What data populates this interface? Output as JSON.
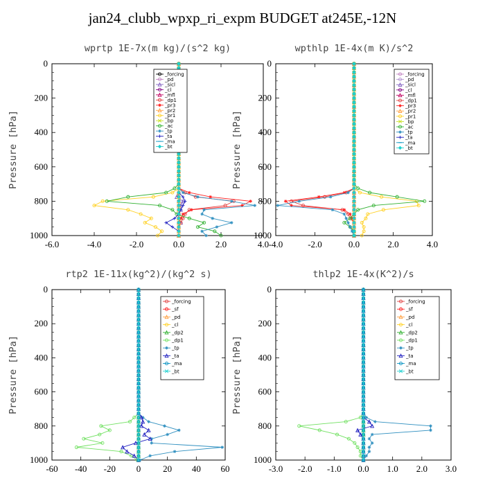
{
  "title": "jan24_clubb_wpxp_ri_expm  BUDGET at245E,-12N",
  "chart_data": [
    {
      "type": "line",
      "title": "wprtp  1E-7x(m kg)/(s^2 kg)",
      "ylabel": "Pressure [hPa]",
      "xlim": [
        -6,
        4
      ],
      "ylim": [
        1000,
        0
      ],
      "xticks": [
        "-6.0",
        "-4.0",
        "-2.0",
        "0.0",
        "2.0",
        "4.0"
      ],
      "yticks": [
        "0",
        "200",
        "400",
        "600",
        "800",
        "1000"
      ],
      "legend_position": "top-right",
      "y": [
        725,
        750,
        775,
        800,
        825,
        850,
        875,
        900,
        925,
        950,
        975,
        1000
      ],
      "series": [
        {
          "name": "_forcing",
          "color": "#000000",
          "values": [
            0,
            0,
            0,
            0,
            0,
            0,
            0,
            0,
            0,
            0,
            0,
            0
          ]
        },
        {
          "name": "_pd",
          "color": "#c080c0",
          "values": [
            0,
            0,
            0,
            0,
            0,
            0,
            0,
            0,
            0,
            0,
            0,
            0
          ]
        },
        {
          "name": "_sicl",
          "color": "#8060c0",
          "values": [
            0,
            0,
            -0.1,
            0.2,
            0.1,
            0.1,
            0,
            0,
            0.1,
            0,
            0,
            0
          ]
        },
        {
          "name": "_cl",
          "color": "#800080",
          "values": [
            0,
            0,
            0,
            0,
            0,
            0,
            0,
            0,
            0,
            0,
            0,
            0
          ]
        },
        {
          "name": "_mfl",
          "color": "#c00060",
          "values": [
            0,
            0,
            0,
            0,
            0,
            0,
            0,
            0,
            0,
            0,
            0,
            0
          ]
        },
        {
          "name": "_dp1",
          "color": "#e04040",
          "values": [
            0,
            0.3,
            0.8,
            2.6,
            2.2,
            0.5,
            0.3,
            0.2,
            0.1,
            0,
            0,
            0
          ]
        },
        {
          "name": "_pr3",
          "color": "#ff2020",
          "values": [
            0,
            0.5,
            1.5,
            3.4,
            3.0,
            0.6,
            0.2,
            0.1,
            0,
            0,
            0,
            0
          ]
        },
        {
          "name": "_pr2",
          "color": "#ffa040",
          "values": [
            0,
            0,
            0,
            0,
            0,
            0,
            0,
            0,
            0,
            0,
            0,
            0
          ]
        },
        {
          "name": "_pr1",
          "color": "#ffd020",
          "values": [
            0,
            -0.3,
            -1.2,
            -3.6,
            -4.0,
            -2.4,
            -1.8,
            -1.3,
            -1.6,
            -1.1,
            -0.8,
            -1.0
          ]
        },
        {
          "name": "_bp",
          "color": "#c8e020",
          "values": [
            0,
            0,
            0,
            0,
            0,
            0,
            0,
            0,
            0,
            0,
            0,
            0
          ]
        },
        {
          "name": "_ac",
          "color": "#30b030",
          "values": [
            -0.2,
            -0.6,
            -2.4,
            -3.4,
            -0.9,
            -0.3,
            -0.1,
            0.5,
            1.2,
            0.9,
            1.7,
            2.0
          ]
        },
        {
          "name": "_tp",
          "color": "#3090c0",
          "values": [
            0,
            0.2,
            0.9,
            2.5,
            3.6,
            1.2,
            1.1,
            1.6,
            2.5,
            1.8,
            1.1,
            1.3
          ]
        },
        {
          "name": "_ta",
          "color": "#2020c0",
          "values": [
            0,
            0,
            0.2,
            0.3,
            0.2,
            0.1,
            0,
            -0.2,
            -0.6,
            -0.3,
            0,
            0
          ]
        },
        {
          "name": "_ma",
          "color": "#0090c0",
          "values": [
            0,
            0,
            0,
            0,
            0,
            0,
            0,
            0,
            0,
            0,
            0,
            0
          ]
        },
        {
          "name": "_bt",
          "color": "#20d0d0",
          "values": [
            0,
            0,
            0,
            0,
            0,
            0,
            0,
            0,
            0,
            0,
            0,
            0
          ]
        }
      ]
    },
    {
      "type": "line",
      "title": "wpthlp  1E-4x(m K)/s^2",
      "ylabel": "Pressure [hPa]",
      "xlim": [
        -4,
        4
      ],
      "ylim": [
        1000,
        0
      ],
      "xticks": [
        "-4.0",
        "-2.0",
        "0.0",
        "2.0",
        "4.0"
      ],
      "yticks": [
        "0",
        "200",
        "400",
        "600",
        "800",
        "1000"
      ],
      "legend_position": "top-right",
      "y": [
        725,
        750,
        775,
        800,
        825,
        850,
        875,
        900,
        925,
        950,
        975,
        1000
      ],
      "series": [
        {
          "name": "_forcing",
          "color": "#c080c0",
          "values": [
            0,
            0,
            0,
            0,
            0,
            0,
            0,
            0,
            0,
            0,
            0,
            0
          ]
        },
        {
          "name": "_pd",
          "color": "#b090d0",
          "values": [
            0,
            0,
            0,
            0,
            0,
            0,
            0,
            0,
            0,
            0,
            0,
            0
          ]
        },
        {
          "name": "_sicl",
          "color": "#8060c0",
          "values": [
            0,
            0,
            0,
            0,
            0,
            0,
            0,
            0,
            0,
            0,
            0,
            0
          ]
        },
        {
          "name": "_cl",
          "color": "#800080",
          "values": [
            0,
            0,
            0,
            0,
            0,
            0,
            0,
            0,
            0,
            0,
            0,
            0
          ]
        },
        {
          "name": "_mfl",
          "color": "#c00060",
          "values": [
            0,
            0,
            0,
            0,
            0,
            0,
            0,
            0,
            0,
            0,
            0,
            0
          ]
        },
        {
          "name": "_dp1",
          "color": "#e04040",
          "values": [
            0,
            -0.4,
            -1.5,
            -3.2,
            -2.6,
            -0.6,
            -0.3,
            -0.2,
            0,
            0,
            0,
            0
          ]
        },
        {
          "name": "_pr3",
          "color": "#ff2020",
          "values": [
            0,
            -0.5,
            -1.8,
            -3.5,
            -3.2,
            -0.5,
            -0.2,
            -0.1,
            0,
            0,
            0,
            0
          ]
        },
        {
          "name": "_pr2",
          "color": "#ffa040",
          "values": [
            0,
            0,
            0,
            0,
            0,
            0,
            0,
            0,
            0,
            0,
            0,
            0
          ]
        },
        {
          "name": "_pr1",
          "color": "#ffd020",
          "values": [
            0,
            0.3,
            1.4,
            3.2,
            3.3,
            1.5,
            0.7,
            0.6,
            0.4,
            0.5,
            0.5,
            0.4
          ]
        },
        {
          "name": "_bp",
          "color": "#c8e020",
          "values": [
            0,
            0,
            0,
            0,
            0,
            0,
            0,
            0,
            0,
            0,
            0,
            0
          ]
        },
        {
          "name": "_ac",
          "color": "#30b030",
          "values": [
            0.2,
            0.8,
            2.2,
            3.6,
            1.0,
            0.2,
            0,
            -0.2,
            -0.5,
            -0.2,
            0,
            0
          ]
        },
        {
          "name": "_tp",
          "color": "#3090c0",
          "values": [
            0,
            -0.3,
            -1.2,
            -2.8,
            -3.9,
            -1.1,
            -0.5,
            -0.4,
            -0.3,
            -0.2,
            -0.1,
            0
          ]
        },
        {
          "name": "_ta",
          "color": "#2020c0",
          "values": [
            0,
            0,
            0,
            0,
            0,
            0,
            0,
            0,
            0,
            0,
            0,
            0
          ]
        },
        {
          "name": "_ma",
          "color": "#0090c0",
          "values": [
            0,
            0,
            0,
            0,
            0,
            0,
            0,
            0,
            0,
            0,
            0,
            0
          ]
        },
        {
          "name": "_bt",
          "color": "#20d0d0",
          "values": [
            0,
            0,
            0,
            0,
            0,
            0,
            0,
            0,
            0,
            0,
            0,
            0
          ]
        }
      ]
    },
    {
      "type": "line",
      "title": "rtp2  1E-11x(kg^2)/(kg^2 s)",
      "ylabel": "Pressure [hPa]",
      "xlim": [
        -60,
        60
      ],
      "ylim": [
        1000,
        0
      ],
      "xticks": [
        "-60",
        "-40",
        "-20",
        "0",
        "20",
        "40",
        "60"
      ],
      "yticks": [
        "0",
        "200",
        "400",
        "600",
        "800",
        "1000"
      ],
      "legend_position": "top-right",
      "y": [
        725,
        750,
        775,
        800,
        825,
        850,
        875,
        900,
        925,
        950,
        975,
        1000
      ],
      "series": [
        {
          "name": "_forcing",
          "color": "#e04040",
          "values": [
            0,
            0,
            0,
            0,
            0,
            0,
            0,
            0,
            0,
            0,
            0,
            0
          ]
        },
        {
          "name": "_sf",
          "color": "#ff2020",
          "values": [
            0,
            0,
            0,
            0,
            0,
            0,
            0,
            0,
            0,
            0,
            0,
            0
          ]
        },
        {
          "name": "_pd",
          "color": "#ffa040",
          "values": [
            0,
            0,
            0,
            0,
            0,
            0,
            0,
            0,
            0,
            0,
            0,
            0
          ]
        },
        {
          "name": "_cl",
          "color": "#ffd020",
          "values": [
            0,
            0,
            0,
            0,
            0,
            0,
            0,
            0,
            0,
            0,
            0,
            0
          ]
        },
        {
          "name": "_dp2",
          "color": "#30b030",
          "values": [
            0,
            0,
            0,
            0,
            0,
            0,
            0,
            0,
            0,
            0,
            0,
            0
          ]
        },
        {
          "name": "_dp1",
          "color": "#70e060",
          "values": [
            0,
            -3,
            -6,
            -26,
            -20,
            -27,
            -38,
            -25,
            -43,
            -12,
            -5,
            -1
          ]
        },
        {
          "name": "_tp",
          "color": "#3090c0",
          "values": [
            0,
            3,
            7,
            18,
            28,
            20,
            9,
            9,
            58,
            25,
            8,
            1
          ]
        },
        {
          "name": "_ta",
          "color": "#2020c0",
          "values": [
            0,
            2,
            3,
            2,
            7,
            4,
            8,
            -2,
            -11,
            -8,
            -3,
            0
          ]
        },
        {
          "name": "_ma",
          "color": "#0090c0",
          "values": [
            0,
            0,
            0,
            0,
            0,
            0,
            0,
            0,
            0,
            0,
            0,
            0
          ]
        },
        {
          "name": "_bt",
          "color": "#20d0d0",
          "values": [
            0,
            0,
            0,
            0,
            0,
            0,
            0,
            0,
            0,
            0,
            0,
            0
          ]
        }
      ]
    },
    {
      "type": "line",
      "title": "thlp2  1E-4x(K^2)/s",
      "ylabel": "Pressure [hPa]",
      "xlim": [
        -3,
        3
      ],
      "ylim": [
        1000,
        0
      ],
      "xticks": [
        "-3.0",
        "-2.0",
        "-1.0",
        "0.0",
        "1.0",
        "2.0",
        "3.0"
      ],
      "yticks": [
        "0",
        "200",
        "400",
        "600",
        "800",
        "1000"
      ],
      "legend_position": "top-right",
      "y": [
        725,
        750,
        775,
        800,
        825,
        850,
        875,
        900,
        925,
        950,
        975,
        1000
      ],
      "series": [
        {
          "name": "_forcing",
          "color": "#e04040",
          "values": [
            0,
            0,
            0,
            0,
            0,
            0,
            0,
            0,
            0,
            0,
            0,
            0
          ]
        },
        {
          "name": "_sf",
          "color": "#ff2020",
          "values": [
            0,
            0,
            0,
            0,
            0,
            0,
            0,
            0,
            0,
            0,
            0,
            0
          ]
        },
        {
          "name": "_pd",
          "color": "#ffa040",
          "values": [
            0,
            0,
            0,
            0,
            0,
            0,
            0,
            0,
            0,
            0,
            0,
            0
          ]
        },
        {
          "name": "_cl",
          "color": "#ffd020",
          "values": [
            0,
            0,
            0,
            0,
            0,
            0,
            0,
            0,
            0,
            0,
            0,
            0
          ]
        },
        {
          "name": "_dp2",
          "color": "#30b030",
          "values": [
            0,
            0,
            0,
            0,
            0,
            0,
            0,
            0,
            0,
            0,
            0,
            0
          ]
        },
        {
          "name": "_dp1",
          "color": "#70e060",
          "values": [
            0,
            -0.1,
            -0.6,
            -2.2,
            -1.5,
            -0.9,
            -0.5,
            -0.3,
            -0.2,
            -0.1,
            -0.1,
            0
          ]
        },
        {
          "name": "_tp",
          "color": "#3090c0",
          "values": [
            0,
            0.1,
            0.4,
            2.3,
            2.3,
            0.3,
            0.2,
            0.3,
            0.2,
            0.2,
            0.1,
            0
          ]
        },
        {
          "name": "_ta",
          "color": "#2020c0",
          "values": [
            0,
            0,
            0.2,
            0.3,
            -0.2,
            -0.1,
            0,
            0,
            0,
            0,
            0,
            0
          ]
        },
        {
          "name": "_ma",
          "color": "#0090c0",
          "values": [
            0,
            0,
            0,
            0,
            0,
            0,
            0,
            0,
            0,
            0,
            0,
            0
          ]
        },
        {
          "name": "_bt",
          "color": "#20d0d0",
          "values": [
            0,
            0,
            0,
            0,
            0,
            0,
            0,
            0,
            0,
            0,
            0,
            0
          ]
        }
      ]
    }
  ]
}
